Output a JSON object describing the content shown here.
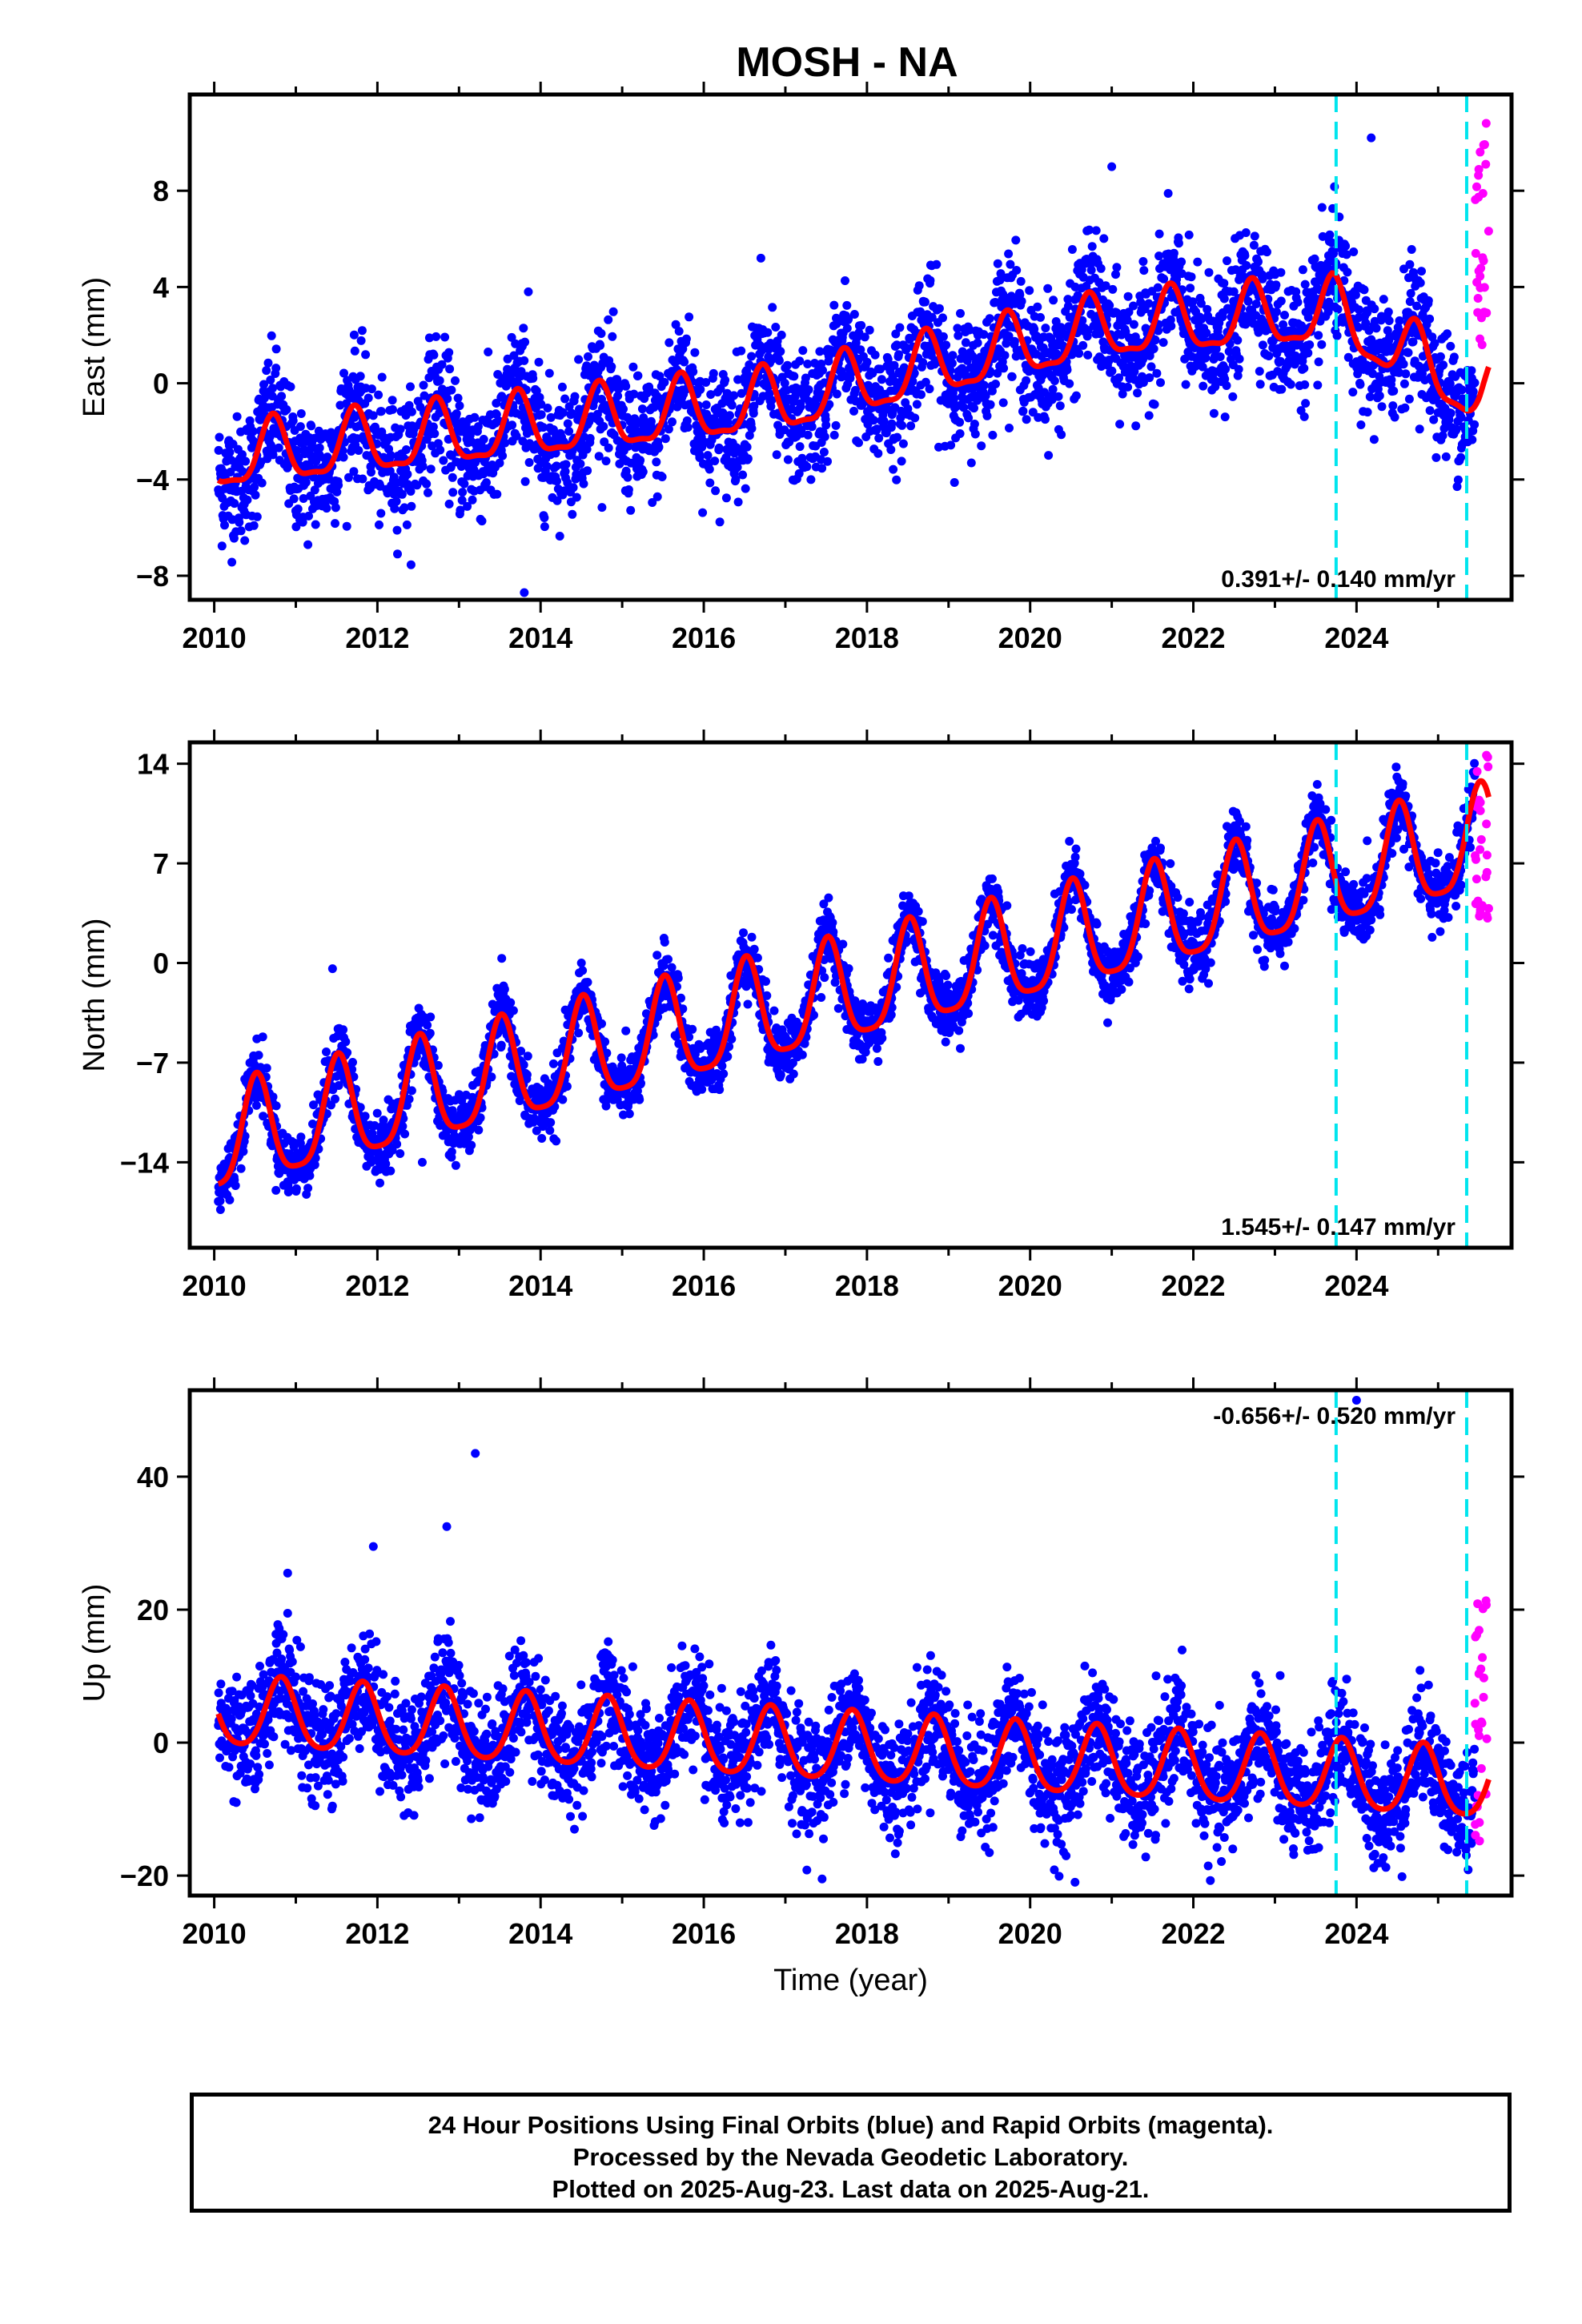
{
  "title": "MOSH - NA",
  "caption": {
    "line1": "24 Hour Positions Using Final Orbits (blue) and Rapid Orbits (magenta).",
    "line2": "Processed by the Nevada Geodetic Laboratory.",
    "line3": "Plotted on 2025-Aug-23. Last data on 2025-Aug-21."
  },
  "colors": {
    "final_orbits": "#0000ff",
    "rapid_orbits": "#ff00ff",
    "model_fit": "#ff0000",
    "event_lines": "#00e5ee",
    "frame": "#000000"
  },
  "chart_data": [
    {
      "type": "scatter",
      "ylabel": "East (mm)",
      "xlabel": "",
      "xlim": [
        2009.7,
        2025.9
      ],
      "ylim": [
        -9,
        12
      ],
      "xticks": [
        2010,
        2012,
        2014,
        2016,
        2018,
        2020,
        2022,
        2024
      ],
      "yticks": [
        -8,
        -4,
        0,
        4,
        8
      ],
      "rate_text": "0.391+/- 0.140 mm/yr",
      "rate_position": "bottom-right",
      "event_lines_x": [
        2023.75,
        2025.35
      ],
      "model": {
        "base_x": [
          2010,
          2017,
          2019,
          2021,
          2023.7,
          2025.5
        ],
        "base_y": [
          -3.2,
          -0.8,
          0.8,
          2.3,
          2.9,
          -0.5
        ],
        "annual_amp": 1.3,
        "semiannual_amp": 0.4,
        "phase_peak": 0.72
      },
      "series": [
        {
          "name": "Final Orbits",
          "color": "#0000ff",
          "x_range": [
            2010.05,
            2025.45
          ],
          "noise_sd": 1.3
        },
        {
          "name": "Rapid Orbits",
          "color": "#ff00ff",
          "x_range": [
            2025.45,
            2025.62
          ],
          "y_range": [
            1.5,
            11.2
          ]
        }
      ],
      "outliers": [
        [
          2024.18,
          10.2
        ],
        [
          2021.0,
          9.0
        ],
        [
          2013.85,
          3.8
        ],
        [
          2013.8,
          -8.7
        ],
        [
          2016.7,
          5.2
        ]
      ]
    },
    {
      "type": "scatter",
      "ylabel": "North (mm)",
      "xlabel": "",
      "xlim": [
        2009.7,
        2025.9
      ],
      "ylim": [
        -20,
        15.5
      ],
      "xticks": [
        2010,
        2012,
        2014,
        2016,
        2018,
        2020,
        2022,
        2024
      ],
      "yticks": [
        -14,
        -7,
        0,
        7,
        14
      ],
      "rate_text": "1.545+/- 0.147 mm/yr",
      "rate_position": "bottom-right",
      "event_lines_x": [
        2023.75,
        2025.35
      ],
      "model": {
        "base_x": [
          2010,
          2025.6
        ],
        "base_y": [
          -12.8,
          8.5
        ],
        "annual_amp": 3.6,
        "semiannual_amp": 0.8,
        "phase_peak": 0.52
      },
      "series": [
        {
          "name": "Final Orbits",
          "color": "#0000ff",
          "x_range": [
            2010.05,
            2025.45
          ],
          "noise_sd": 1.1
        },
        {
          "name": "Rapid Orbits",
          "color": "#ff00ff",
          "x_range": [
            2025.45,
            2025.62
          ],
          "y_range": [
            2.5,
            15.0
          ]
        }
      ],
      "outliers": [
        [
          2011.45,
          -0.4
        ],
        [
          2014.5,
          0.0
        ],
        [
          2020.95,
          -4.2
        ],
        [
          2012.55,
          -14.0
        ]
      ]
    },
    {
      "type": "scatter",
      "ylabel": "Up (mm)",
      "xlabel": "Time (year)",
      "xlim": [
        2009.7,
        2025.9
      ],
      "ylim": [
        -23,
        53
      ],
      "xticks": [
        2010,
        2012,
        2014,
        2016,
        2018,
        2020,
        2022,
        2024
      ],
      "yticks": [
        -20,
        0,
        20,
        40
      ],
      "rate_text": "-0.656+/- 0.520 mm/yr",
      "rate_position": "top-right",
      "event_lines_x": [
        2023.75,
        2025.35
      ],
      "model": {
        "base_x": [
          2010,
          2025.6
        ],
        "base_y": [
          4.5,
          -6.5
        ],
        "annual_amp": 5.2,
        "semiannual_amp": 0.8,
        "phase_peak": 0.82
      },
      "series": [
        {
          "name": "Final Orbits",
          "color": "#0000ff",
          "x_range": [
            2010.05,
            2025.45
          ],
          "noise_sd": 4.3
        },
        {
          "name": "Rapid Orbits",
          "color": "#ff00ff",
          "x_range": [
            2025.45,
            2025.62
          ],
          "y_range": [
            -15,
            24
          ]
        }
      ],
      "outliers": [
        [
          2013.2,
          43.5
        ],
        [
          2012.85,
          32.5
        ],
        [
          2011.95,
          29.5
        ],
        [
          2010.9,
          25.5
        ],
        [
          2024.0,
          51.5
        ],
        [
          2017.45,
          -20.5
        ],
        [
          2020.55,
          -21.0
        ]
      ]
    }
  ]
}
